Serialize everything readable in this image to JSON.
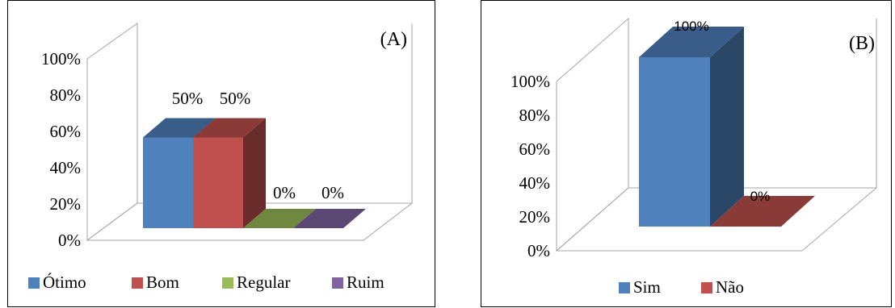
{
  "chart_data": [
    {
      "type": "bar",
      "title": "(A)",
      "categories": [
        "Ótimo",
        "Bom",
        "Regular",
        "Ruim"
      ],
      "values": [
        50,
        50,
        0,
        0
      ],
      "value_labels": [
        "50%",
        "50%",
        "0%",
        "0%"
      ],
      "yticks": [
        "0%",
        "20%",
        "40%",
        "60%",
        "80%",
        "100%"
      ],
      "ylim": [
        0,
        100
      ],
      "legend_position": "bottom",
      "colors": [
        "#4F81BD",
        "#C0504D",
        "#9BBB59",
        "#8064A2"
      ]
    },
    {
      "type": "bar",
      "title": "(B)",
      "categories": [
        "Sim",
        "Não"
      ],
      "values": [
        100,
        0
      ],
      "value_labels": [
        "100%",
        "0%"
      ],
      "yticks": [
        "0%",
        "20%",
        "40%",
        "60%",
        "80%",
        "100%"
      ],
      "ylim": [
        0,
        100
      ],
      "legend_position": "bottom",
      "colors": [
        "#4F81BD",
        "#C0504D"
      ]
    }
  ]
}
